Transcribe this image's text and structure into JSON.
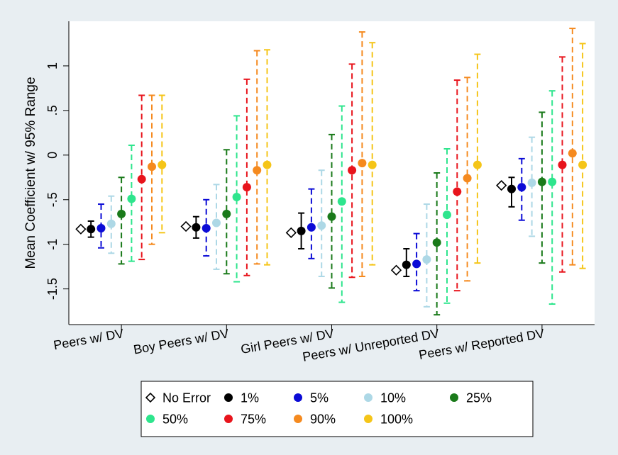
{
  "chart_data": {
    "type": "scatter",
    "title": "",
    "xlabel": "",
    "ylabel": "Mean Coefficient w/ 95% Range",
    "ylim": [
      -1.9,
      1.5
    ],
    "yticks": [
      1,
      0.5,
      0,
      -0.5,
      -1,
      -1.5
    ],
    "ytick_labels": [
      "1",
      ".5",
      "0",
      "-.5",
      "-1",
      "-1.5"
    ],
    "grid": false,
    "legend_position": "bottom",
    "categories": [
      "Peers w/ DV",
      "Boy Peers w/ DV",
      "Girl Peers w/ DV",
      "Peers w/ Unreported DV",
      "Peers w/ Reported DV"
    ],
    "series": [
      {
        "name": "No Error",
        "color": "#000000",
        "marker": "diamond-open",
        "values": [
          -0.83,
          -0.8,
          -0.87,
          -1.29,
          -0.34
        ],
        "lower": [
          null,
          null,
          null,
          null,
          null
        ],
        "upper": [
          null,
          null,
          null,
          null,
          null
        ]
      },
      {
        "name": "1%",
        "color": "#000000",
        "marker": "circle",
        "values": [
          -0.83,
          -0.81,
          -0.85,
          -1.23,
          -0.38
        ],
        "lower": [
          -0.92,
          -0.93,
          -1.05,
          -1.36,
          -0.58
        ],
        "upper": [
          -0.74,
          -0.69,
          -0.65,
          -1.05,
          -0.25
        ]
      },
      {
        "name": "5%",
        "color": "#0b0bd6",
        "marker": "circle",
        "values": [
          -0.82,
          -0.82,
          -0.81,
          -1.22,
          -0.36
        ],
        "lower": [
          -1.04,
          -1.13,
          -1.16,
          -1.52,
          -0.73
        ],
        "upper": [
          -0.55,
          -0.5,
          -0.38,
          -0.88,
          -0.04
        ]
      },
      {
        "name": "10%",
        "color": "#add8e6",
        "marker": "circle",
        "values": [
          -0.77,
          -0.76,
          -0.79,
          -1.17,
          -0.31
        ],
        "lower": [
          -1.1,
          -1.28,
          -1.36,
          -1.7,
          -0.91
        ],
        "upper": [
          -0.46,
          -0.33,
          -0.17,
          -0.55,
          0.2
        ]
      },
      {
        "name": "25%",
        "color": "#1a7a1a",
        "marker": "circle",
        "values": [
          -0.66,
          -0.66,
          -0.69,
          -0.98,
          -0.3
        ],
        "lower": [
          -1.22,
          -1.33,
          -1.49,
          -1.79,
          -1.21
        ],
        "upper": [
          -0.25,
          0.06,
          0.23,
          -0.2,
          0.48
        ]
      },
      {
        "name": "50%",
        "color": "#2ee58d",
        "marker": "circle",
        "values": [
          -0.49,
          -0.47,
          -0.52,
          -0.67,
          -0.3
        ],
        "lower": [
          -1.19,
          -1.42,
          -1.65,
          -1.66,
          -1.67
        ],
        "upper": [
          0.11,
          0.44,
          0.55,
          0.07,
          0.72
        ]
      },
      {
        "name": "75%",
        "color": "#e8141c",
        "marker": "circle",
        "values": [
          -0.27,
          -0.36,
          -0.17,
          -0.41,
          -0.11
        ],
        "lower": [
          -1.17,
          -1.35,
          -1.37,
          -1.52,
          -1.31
        ],
        "upper": [
          0.67,
          0.85,
          1.02,
          0.84,
          1.1
        ]
      },
      {
        "name": "90%",
        "color": "#f58a1f",
        "marker": "circle",
        "values": [
          -0.13,
          -0.17,
          -0.09,
          -0.26,
          0.02
        ],
        "lower": [
          -1.0,
          -1.22,
          -1.36,
          -1.41,
          -1.23
        ],
        "upper": [
          0.67,
          1.17,
          1.38,
          0.87,
          1.42
        ]
      },
      {
        "name": "100%",
        "color": "#f5c518",
        "marker": "circle",
        "values": [
          -0.11,
          -0.11,
          -0.11,
          -0.11,
          -0.11
        ],
        "lower": [
          -0.87,
          -1.23,
          -1.23,
          -1.21,
          -1.27
        ],
        "upper": [
          0.67,
          1.18,
          1.26,
          1.13,
          1.25
        ]
      }
    ]
  }
}
